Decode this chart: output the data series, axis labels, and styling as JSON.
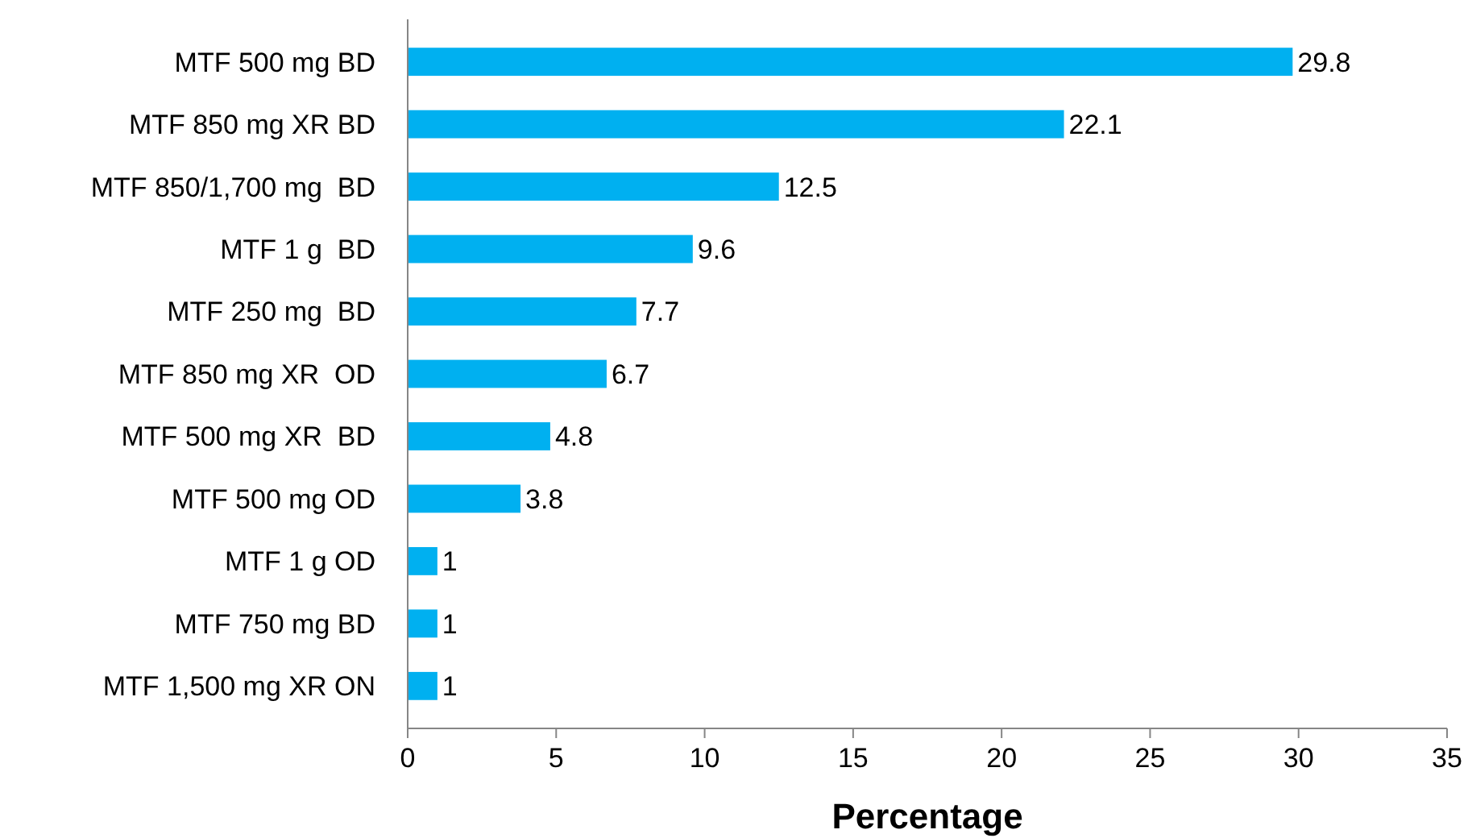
{
  "chart_data": {
    "type": "bar",
    "orientation": "horizontal",
    "xlabel": "Percentage",
    "categories": [
      "MTF 500 mg BD",
      "MTF 850 mg XR BD",
      "MTF 850/1,700 mg  BD",
      "MTF 1 g  BD",
      "MTF 250 mg  BD",
      "MTF 850 mg XR  OD",
      "MTF 500 mg XR  BD",
      "MTF 500 mg OD",
      "MTF 1 g OD",
      "MTF 750 mg BD",
      "MTF 1,500 mg XR ON"
    ],
    "values": [
      29.8,
      22.1,
      12.5,
      9.6,
      7.7,
      6.7,
      4.8,
      3.8,
      1,
      1,
      1
    ],
    "color": "#00b0f0",
    "xlim": [
      0,
      35
    ],
    "xticks": [
      0,
      5,
      10,
      15,
      20,
      25,
      30,
      35
    ],
    "grid": false,
    "data_labels": true
  }
}
